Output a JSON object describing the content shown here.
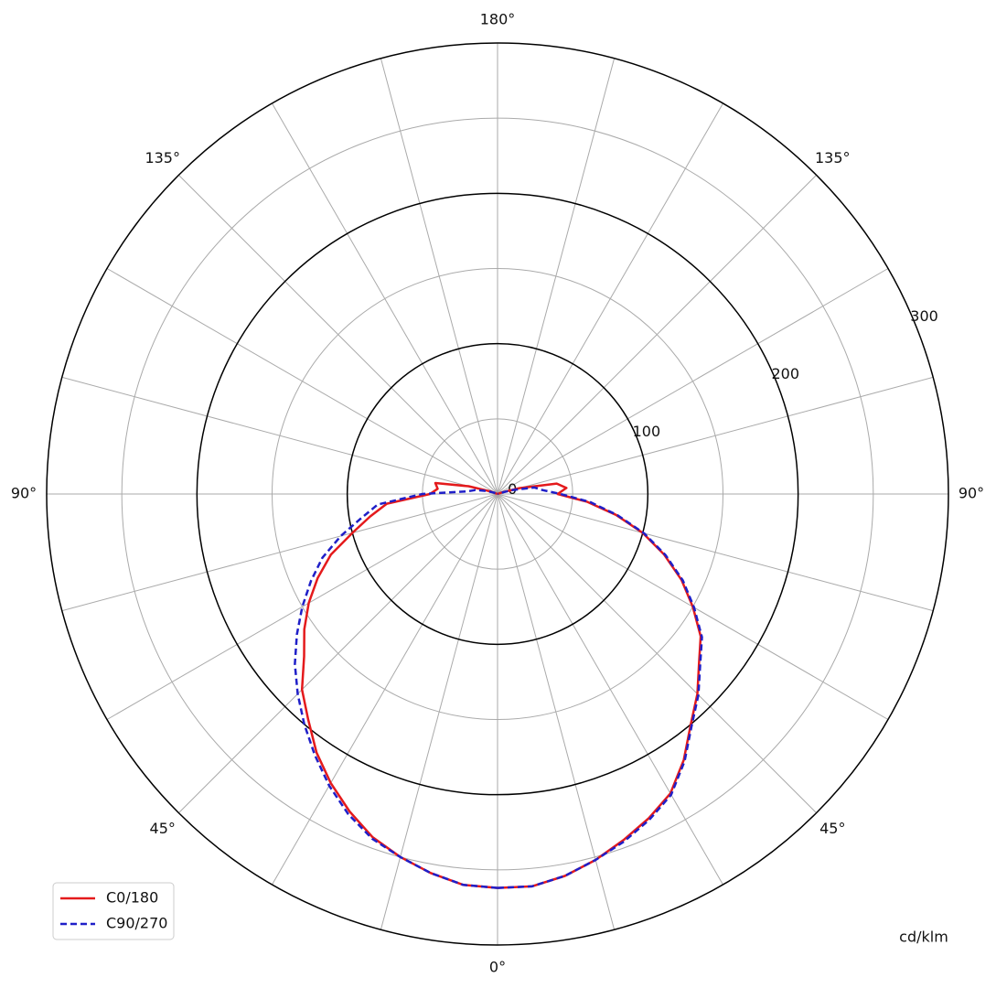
{
  "chart_data": {
    "type": "polar",
    "unit_label": "cd/klm",
    "rlim": [
      0,
      300
    ],
    "rticks": [
      0,
      100,
      200,
      300
    ],
    "rminor": [
      50,
      150,
      250
    ],
    "thetaticks": [
      0,
      15,
      30,
      45,
      60,
      75,
      90,
      105,
      120,
      135,
      150,
      165,
      180
    ],
    "theta_labels": [
      {
        "value": 0,
        "label": "0°"
      },
      {
        "value": 45,
        "label": "45°"
      },
      {
        "value": 90,
        "label": "90°"
      },
      {
        "value": 135,
        "label": "135°"
      },
      {
        "value": 180,
        "label": "180°"
      }
    ],
    "angles": [
      0,
      5,
      10,
      15,
      20,
      25,
      30,
      35,
      40,
      45,
      50,
      55,
      60,
      65,
      70,
      75,
      80,
      85,
      90,
      95,
      100,
      105,
      110,
      115,
      120,
      125,
      130,
      135,
      140,
      145,
      150,
      155,
      160,
      165,
      170,
      175,
      180
    ],
    "legend": "lower left",
    "series": [
      {
        "name": "C0/180",
        "color": "#e41a1c",
        "dashed": false,
        "values": [
          262,
          261,
          256,
          250,
          243,
          233,
          222,
          210,
          196,
          184,
          168,
          157,
          145,
          132,
          118,
          100,
          86,
          74,
          45,
          40,
          42,
          20,
          5,
          0,
          0,
          0,
          0,
          0,
          0,
          0,
          0,
          0,
          0,
          0,
          0,
          0,
          0
        ],
        "values_mirror": [
          262,
          262,
          258,
          252,
          245,
          238,
          230,
          216,
          200,
          188,
          175,
          165,
          150,
          135,
          118,
          100,
          80,
          60,
          40,
          46,
          40,
          15,
          3,
          0,
          0,
          0,
          0,
          0,
          0,
          0,
          0,
          0,
          0,
          0,
          0,
          0,
          0
        ]
      },
      {
        "name": "C90/270",
        "color": "#1f1fc8",
        "dashed": true,
        "values": [
          262,
          261,
          256,
          250,
          244,
          235,
          224,
          212,
          200,
          188,
          176,
          163,
          150,
          137,
          124,
          108,
          92,
          80,
          50,
          20,
          15,
          8,
          3,
          0,
          0,
          0,
          0,
          0,
          0,
          0,
          0,
          0,
          0,
          0,
          0,
          0,
          0
        ],
        "values_mirror": [
          262,
          262,
          258,
          252,
          246,
          239,
          231,
          217,
          201,
          189,
          176,
          166,
          151,
          136,
          119,
          101,
          81,
          62,
          42,
          30,
          25,
          10,
          2,
          0,
          0,
          0,
          0,
          0,
          0,
          0,
          0,
          0,
          0,
          0,
          0,
          0,
          0
        ]
      }
    ]
  }
}
